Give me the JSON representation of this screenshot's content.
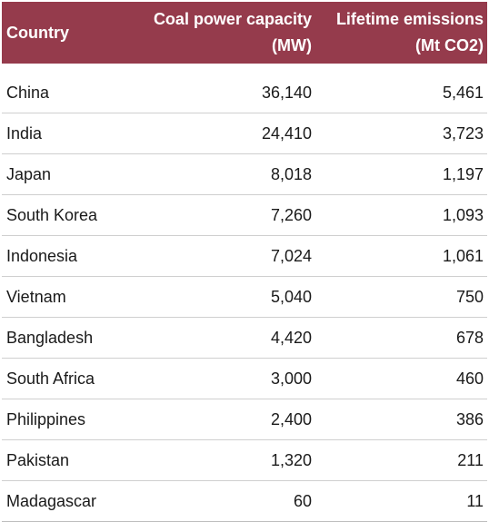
{
  "colors": {
    "header_background": "#953b4c",
    "header_text": "#ffffff",
    "row_divider": "#cfcfcf"
  },
  "table": {
    "headers": {
      "country": "Country",
      "capacity_line1": "Coal power capacity",
      "capacity_line2": "(MW)",
      "emissions_line1": "Lifetime emissions",
      "emissions_line2": "(Mt CO2)"
    },
    "rows": [
      {
        "country": "China",
        "capacity": "36,140",
        "emissions": "5,461"
      },
      {
        "country": "India",
        "capacity": "24,410",
        "emissions": "3,723"
      },
      {
        "country": "Japan",
        "capacity": "8,018",
        "emissions": "1,197"
      },
      {
        "country": "South Korea",
        "capacity": "7,260",
        "emissions": "1,093"
      },
      {
        "country": "Indonesia",
        "capacity": "7,024",
        "emissions": "1,061"
      },
      {
        "country": "Vietnam",
        "capacity": "5,040",
        "emissions": "750"
      },
      {
        "country": "Bangladesh",
        "capacity": "4,420",
        "emissions": "678"
      },
      {
        "country": "South Africa",
        "capacity": "3,000",
        "emissions": "460"
      },
      {
        "country": "Philippines",
        "capacity": "2,400",
        "emissions": "386"
      },
      {
        "country": "Pakistan",
        "capacity": "1,320",
        "emissions": "211"
      },
      {
        "country": "Madagascar",
        "capacity": "60",
        "emissions": "11"
      }
    ]
  }
}
